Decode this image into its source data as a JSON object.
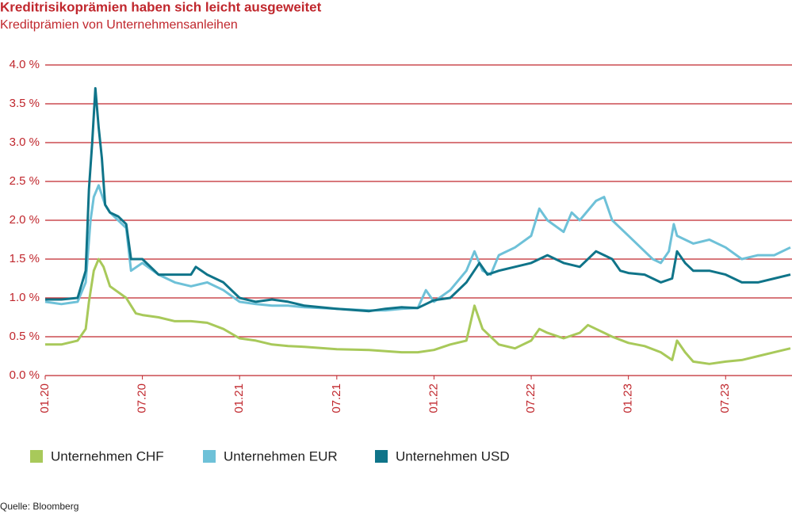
{
  "chart_data": {
    "type": "line",
    "title": "Kreditrisikoprämien haben sich leicht ausgeweitet",
    "subtitle": "Kreditprämien von Unternehmensanleihen",
    "source": "Quelle: Bloomberg",
    "xlim": [
      0,
      46
    ],
    "xticks": [
      {
        "value": 0,
        "label": "01.20"
      },
      {
        "value": 6,
        "label": "07.20"
      },
      {
        "value": 12,
        "label": "01.21"
      },
      {
        "value": 18,
        "label": "07.21"
      },
      {
        "value": 24,
        "label": "01.22"
      },
      {
        "value": 30,
        "label": "07.22"
      },
      {
        "value": 36,
        "label": "01.23"
      },
      {
        "value": 42,
        "label": "07.23"
      }
    ],
    "ylim": [
      0,
      4
    ],
    "yticks": [
      {
        "value": 0,
        "label": "0.0 %"
      },
      {
        "value": 0.5,
        "label": "0.5 %"
      },
      {
        "value": 1,
        "label": "1.0 %"
      },
      {
        "value": 1.5,
        "label": "1.5 %"
      },
      {
        "value": 2,
        "label": "2.0 %"
      },
      {
        "value": 2.5,
        "label": "2.5 %"
      },
      {
        "value": 3,
        "label": "3.0 %"
      },
      {
        "value": 3.5,
        "label": "3.5 %"
      },
      {
        "value": 4,
        "label": "4.0 %"
      }
    ],
    "grid": true,
    "series": [
      {
        "name": "Unternehmen CHF",
        "color": "#a8c95a",
        "x": [
          0,
          1,
          2,
          2.5,
          2.7,
          3,
          3.3,
          3.6,
          4,
          5,
          5.3,
          5.6,
          6,
          7,
          8,
          9,
          10,
          11,
          12,
          13,
          14,
          15,
          16,
          18,
          20,
          22,
          23,
          24,
          25,
          26,
          26.5,
          27,
          28,
          29,
          30,
          30.5,
          31,
          32,
          33,
          33.5,
          34,
          35,
          36,
          37,
          38,
          38.7,
          39,
          39.5,
          40,
          41,
          42,
          43,
          44,
          45,
          46
        ],
        "values": [
          0.4,
          0.4,
          0.45,
          0.6,
          0.95,
          1.35,
          1.5,
          1.4,
          1.15,
          1.0,
          0.9,
          0.8,
          0.78,
          0.75,
          0.7,
          0.7,
          0.68,
          0.6,
          0.48,
          0.45,
          0.4,
          0.38,
          0.37,
          0.34,
          0.33,
          0.3,
          0.3,
          0.33,
          0.4,
          0.45,
          0.9,
          0.6,
          0.4,
          0.35,
          0.45,
          0.6,
          0.55,
          0.48,
          0.55,
          0.65,
          0.6,
          0.5,
          0.42,
          0.38,
          0.3,
          0.2,
          0.45,
          0.3,
          0.18,
          0.15,
          0.18,
          0.2,
          0.25,
          0.3,
          0.35
        ]
      },
      {
        "name": "Unternehmen EUR",
        "color": "#6ec1d8",
        "x": [
          0,
          1,
          2,
          2.5,
          2.8,
          3,
          3.3,
          3.7,
          4,
          4.5,
          5,
          5.3,
          6,
          7,
          8,
          9,
          10,
          11,
          12,
          13,
          14,
          15,
          16,
          18,
          20,
          21,
          22,
          23,
          23.5,
          24,
          25,
          26,
          26.5,
          27,
          27.5,
          28,
          29,
          30,
          30.5,
          31,
          32,
          32.5,
          33,
          34,
          34.5,
          35,
          36,
          37,
          37.5,
          38,
          38.5,
          38.8,
          39,
          40,
          41,
          42,
          43,
          44,
          45,
          46
        ],
        "values": [
          0.95,
          0.92,
          0.95,
          1.2,
          2.0,
          2.3,
          2.45,
          2.2,
          2.1,
          2.0,
          1.9,
          1.35,
          1.45,
          1.3,
          1.2,
          1.15,
          1.2,
          1.1,
          0.95,
          0.92,
          0.9,
          0.9,
          0.88,
          0.86,
          0.84,
          0.84,
          0.86,
          0.87,
          1.1,
          0.95,
          1.1,
          1.35,
          1.6,
          1.35,
          1.3,
          1.55,
          1.65,
          1.8,
          2.15,
          2.0,
          1.85,
          2.1,
          2.0,
          2.25,
          2.3,
          2.0,
          1.8,
          1.6,
          1.5,
          1.45,
          1.6,
          1.95,
          1.8,
          1.7,
          1.75,
          1.65,
          1.5,
          1.55,
          1.55,
          1.65
        ]
      },
      {
        "name": "Unternehmen USD",
        "color": "#0f7489",
        "x": [
          0,
          1,
          2,
          2.5,
          2.7,
          2.9,
          3.1,
          3.3,
          3.5,
          3.7,
          4,
          4.5,
          5,
          5.3,
          6,
          7,
          8,
          9,
          9.3,
          10,
          11,
          12,
          13,
          14,
          15,
          16,
          18,
          20,
          21,
          22,
          23,
          24,
          25,
          26,
          26.8,
          27.3,
          28,
          29,
          30,
          31,
          32,
          33,
          34,
          35,
          35.5,
          36,
          37,
          38,
          38.7,
          39,
          39.5,
          40,
          41,
          42,
          43,
          44,
          45,
          46
        ],
        "values": [
          0.98,
          0.98,
          1.0,
          1.35,
          2.4,
          3.0,
          3.7,
          3.2,
          2.8,
          2.2,
          2.1,
          2.05,
          1.95,
          1.5,
          1.5,
          1.3,
          1.3,
          1.3,
          1.4,
          1.3,
          1.2,
          1.0,
          0.95,
          0.98,
          0.95,
          0.9,
          0.86,
          0.83,
          0.86,
          0.88,
          0.87,
          0.97,
          1.0,
          1.2,
          1.45,
          1.3,
          1.35,
          1.4,
          1.45,
          1.55,
          1.45,
          1.4,
          1.6,
          1.5,
          1.35,
          1.32,
          1.3,
          1.2,
          1.25,
          1.6,
          1.45,
          1.35,
          1.35,
          1.3,
          1.2,
          1.2,
          1.25,
          1.3
        ]
      }
    ]
  }
}
